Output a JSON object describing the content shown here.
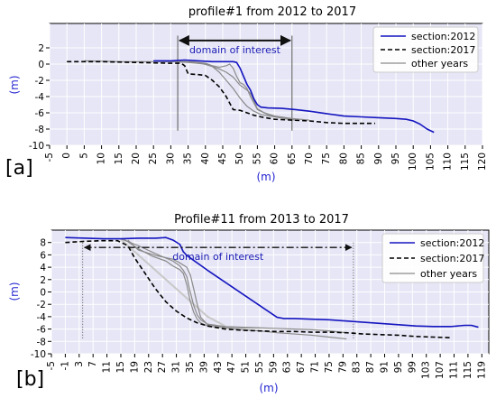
{
  "chart_data": [
    {
      "type": "line",
      "panel_label": "[a]",
      "title": "profile#1 from 2012 to 2017",
      "xlabel": "(m)",
      "ylabel": "(m)",
      "xlim": [
        -5,
        120
      ],
      "ylim": [
        -10,
        5
      ],
      "xticks": [
        -5,
        0,
        5,
        10,
        15,
        20,
        25,
        30,
        35,
        40,
        45,
        50,
        55,
        60,
        65,
        70,
        75,
        80,
        85,
        90,
        95,
        100,
        105,
        110,
        115,
        120
      ],
      "yticks": [
        -10,
        -8,
        -6,
        -4,
        -2,
        0,
        2
      ],
      "grid": true,
      "legend_position": "top-right",
      "annotation": {
        "text": "domain of interest",
        "x_start": 32,
        "x_end": 65
      },
      "vlines": [
        32,
        65
      ],
      "series": [
        {
          "name": "section:2012",
          "color": "#1515c0",
          "style": "solid",
          "width": 1.6,
          "x": [
            25,
            30,
            34,
            38,
            42,
            46,
            48,
            49,
            50,
            51,
            52,
            53,
            54,
            55,
            56,
            58,
            62,
            66,
            70,
            75,
            80,
            85,
            90,
            95,
            98,
            100,
            102,
            104,
            106
          ],
          "y": [
            0.4,
            0.4,
            0.5,
            0.4,
            0.3,
            0.3,
            0.3,
            0.2,
            -0.5,
            -1.5,
            -2.5,
            -3.2,
            -4.3,
            -5.0,
            -5.3,
            -5.4,
            -5.45,
            -5.6,
            -5.8,
            -6.1,
            -6.4,
            -6.5,
            -6.6,
            -6.7,
            -6.8,
            -7.0,
            -7.4,
            -8.0,
            -8.4
          ]
        },
        {
          "name": "section:2017",
          "color": "#000000",
          "style": "dashed",
          "width": 1.6,
          "x": [
            0,
            10,
            20,
            30,
            33,
            34,
            35,
            38,
            40,
            42,
            44,
            46,
            48,
            50,
            52,
            54,
            56,
            60,
            65,
            70,
            75,
            80,
            85,
            89
          ],
          "y": [
            0.3,
            0.3,
            0.2,
            0.1,
            0.1,
            -0.2,
            -1.2,
            -1.3,
            -1.4,
            -2.0,
            -2.8,
            -4.0,
            -5.6,
            -5.7,
            -6.0,
            -6.3,
            -6.5,
            -6.8,
            -6.9,
            -7.0,
            -7.2,
            -7.3,
            -7.3,
            -7.3
          ]
        },
        {
          "name": "other years",
          "color": "#8a8a8a",
          "style": "solid",
          "width": 1.2,
          "x": [
            5,
            15,
            25,
            30,
            35,
            40,
            44,
            46,
            48,
            50,
            52,
            53,
            54,
            55,
            57,
            60,
            65,
            70
          ],
          "y": [
            0.4,
            0.3,
            0.3,
            0.3,
            0.2,
            0.0,
            -0.6,
            -1.0,
            -1.6,
            -2.6,
            -3.2,
            -3.6,
            -4.5,
            -5.5,
            -6.0,
            -6.4,
            -6.7,
            -6.9
          ]
        },
        {
          "name": "",
          "color": "#8a8a8a",
          "style": "solid",
          "width": 1.2,
          "x": [
            30,
            36,
            40,
            42,
            44,
            46,
            47,
            48,
            49,
            50,
            51,
            52,
            53,
            55,
            58,
            62,
            66
          ],
          "y": [
            0.3,
            0.3,
            0.1,
            -0.2,
            -0.4,
            -0.2,
            0.0,
            -0.5,
            -1.5,
            -2.3,
            -2.5,
            -3.0,
            -4.0,
            -5.6,
            -6.2,
            -6.6,
            -6.9
          ]
        },
        {
          "name": "",
          "color": "#8a8a8a",
          "style": "solid",
          "width": 1.2,
          "x": [
            28,
            34,
            38,
            42,
            44,
            46,
            48,
            50,
            52,
            54,
            56,
            60,
            64
          ],
          "y": [
            0.3,
            0.3,
            0.2,
            -0.3,
            -1.0,
            -2.0,
            -3.0,
            -4.2,
            -5.2,
            -5.8,
            -6.2,
            -6.5,
            -6.8
          ]
        }
      ],
      "legend": [
        {
          "label": "section:2012",
          "color": "#1515c0",
          "style": "solid"
        },
        {
          "label": "section:2017",
          "color": "#000000",
          "style": "dashed"
        },
        {
          "label": "other years",
          "color": "#8a8a8a",
          "style": "solid"
        }
      ]
    },
    {
      "type": "line",
      "panel_label": "[b]",
      "title": "Profile#11 from 2013 to 2017",
      "xlabel": "(m)",
      "ylabel": "(m)",
      "xlim": [
        -5,
        121
      ],
      "ylim": [
        -10,
        10
      ],
      "xticks": [
        -5,
        -1,
        3,
        7,
        11,
        15,
        19,
        23,
        27,
        31,
        35,
        39,
        43,
        47,
        51,
        55,
        59,
        63,
        67,
        71,
        75,
        79,
        83,
        87,
        91,
        95,
        99,
        103,
        107,
        111,
        115,
        119
      ],
      "yticks": [
        -10,
        -8,
        -6,
        -4,
        -2,
        0,
        2,
        4,
        6,
        8
      ],
      "grid": true,
      "legend_position": "top-right",
      "annotation": {
        "text": "domain of interest",
        "x_start": 4,
        "x_end": 82
      },
      "vlines": [
        4,
        82
      ],
      "series": [
        {
          "name": "section:2012",
          "color": "#1515c0",
          "style": "solid",
          "width": 1.6,
          "x": [
            -1,
            5,
            10,
            15,
            20,
            25,
            28,
            30,
            32,
            33,
            34,
            40,
            45,
            50,
            55,
            60,
            62,
            65,
            70,
            75,
            80,
            85,
            90,
            95,
            100,
            105,
            110,
            114,
            116,
            118
          ],
          "y": [
            8.8,
            8.7,
            8.6,
            8.6,
            8.7,
            8.7,
            8.8,
            8.4,
            7.7,
            6.5,
            5.9,
            3.5,
            1.6,
            -0.3,
            -2.2,
            -4.1,
            -4.3,
            -4.3,
            -4.4,
            -4.5,
            -4.7,
            -4.9,
            -5.1,
            -5.3,
            -5.5,
            -5.6,
            -5.6,
            -5.4,
            -5.4,
            -5.7
          ]
        },
        {
          "name": "section:2017",
          "color": "#000000",
          "style": "dashed",
          "width": 1.6,
          "x": [
            -1,
            5,
            10,
            14,
            17,
            19,
            22,
            25,
            28,
            31,
            34,
            37,
            40,
            45,
            50,
            55,
            60,
            65,
            70,
            75,
            80,
            85,
            90,
            95,
            100,
            105,
            110
          ],
          "y": [
            8.0,
            8.2,
            8.3,
            8.3,
            7.5,
            5.5,
            3.0,
            0.5,
            -1.6,
            -3.1,
            -4.2,
            -5.0,
            -5.5,
            -6.0,
            -6.2,
            -6.3,
            -6.4,
            -6.4,
            -6.5,
            -6.5,
            -6.6,
            -6.8,
            -6.9,
            -7.0,
            -7.2,
            -7.3,
            -7.4
          ]
        },
        {
          "name": "other years",
          "color": "#8a8a8a",
          "style": "solid",
          "width": 1.2,
          "x": [
            15,
            20,
            25,
            30,
            32,
            33,
            34,
            35,
            36,
            37,
            38,
            40,
            45,
            50,
            55,
            60,
            65,
            70,
            75,
            80
          ],
          "y": [
            8.6,
            7.5,
            6.2,
            5.0,
            4.2,
            3.5,
            2.5,
            0.0,
            -2.2,
            -3.7,
            -4.5,
            -5.2,
            -5.6,
            -5.7,
            -5.8,
            -5.9,
            -6.0,
            -6.1,
            -6.3,
            -6.6
          ]
        },
        {
          "name": "",
          "color": "#8a8a8a",
          "style": "solid",
          "width": 1.2,
          "x": [
            16,
            20,
            24,
            28,
            30,
            32,
            33,
            34,
            35,
            36,
            37,
            38,
            40,
            45,
            50,
            55,
            60,
            65,
            70,
            75,
            80
          ],
          "y": [
            8.5,
            7.0,
            5.8,
            5.0,
            4.2,
            3.6,
            3.0,
            1.2,
            -1.5,
            -3.3,
            -4.4,
            -5.0,
            -5.5,
            -5.8,
            -6.1,
            -6.3,
            -6.6,
            -6.8,
            -7.0,
            -7.3,
            -7.6
          ]
        },
        {
          "name": "",
          "color": "#8a8a8a",
          "style": "solid",
          "width": 1.2,
          "x": [
            17,
            20,
            25,
            30,
            32,
            34,
            35,
            36,
            37,
            38,
            40,
            45,
            50,
            55
          ],
          "y": [
            8.4,
            6.8,
            5.9,
            5.3,
            4.7,
            4.0,
            2.8,
            0.5,
            -2.0,
            -4.1,
            -5.3,
            -5.6,
            -5.8,
            -5.8
          ]
        }
      ],
      "extra_lines": [
        {
          "color": "#c8c8c8",
          "width": 2.0,
          "x": [
            15,
            20,
            25,
            30,
            35,
            40,
            45
          ],
          "y": [
            8.5,
            6.0,
            3.5,
            1.0,
            -1.5,
            -4.0,
            -5.5
          ]
        }
      ],
      "legend": [
        {
          "label": "section:2012",
          "color": "#1515c0",
          "style": "solid"
        },
        {
          "label": "section:2017",
          "color": "#000000",
          "style": "dashed"
        },
        {
          "label": "other years",
          "color": "#8a8a8a",
          "style": "solid"
        }
      ]
    }
  ]
}
